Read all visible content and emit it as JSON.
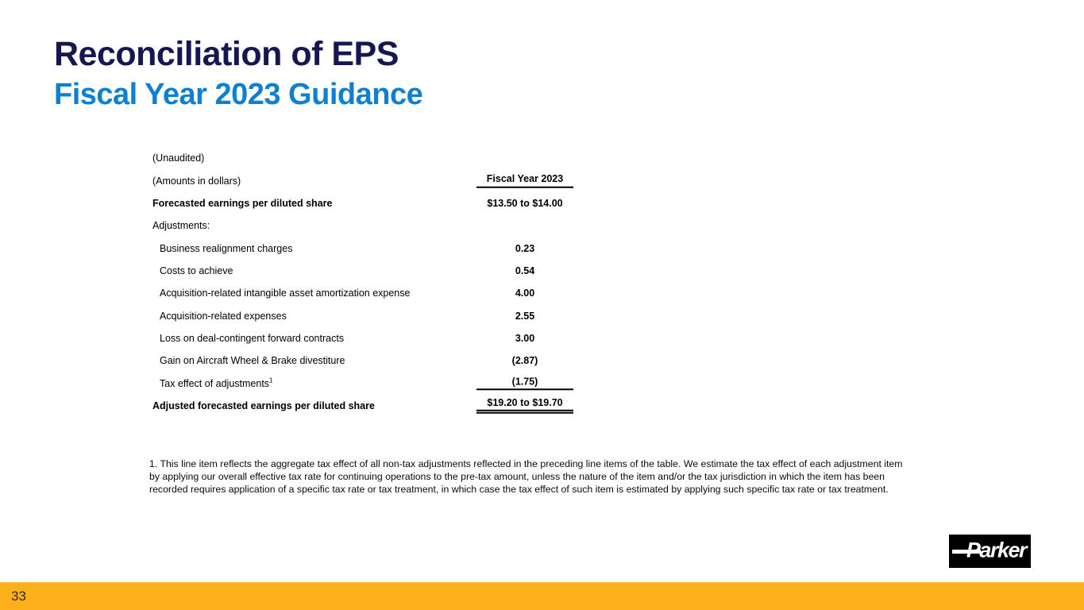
{
  "slide": {
    "title": "Reconciliation of EPS",
    "subtitle": "Fiscal Year 2023 Guidance"
  },
  "colors": {
    "title_navy": "#161650",
    "subtitle_blue": "#0E7FD1",
    "footer_bar_amber": "#FCB11C",
    "logo_background": "#000000",
    "table_rules": "#000000"
  },
  "table": {
    "unaudited": "(Unaudited)",
    "amounts": "(Amounts in dollars)",
    "column_header": "Fiscal Year 2023",
    "rows": [
      {
        "label": "Forecasted earnings per diluted share",
        "value": "$13.50 to $14.00"
      },
      {
        "label": "Adjustments:",
        "value": ""
      },
      {
        "label": "Business realignment charges",
        "value": "0.23"
      },
      {
        "label": "Costs to achieve",
        "value": "0.54"
      },
      {
        "label": "Acquisition-related intangible asset amortization expense",
        "value": "4.00"
      },
      {
        "label": "Acquisition-related expenses",
        "value": "2.55"
      },
      {
        "label": "Loss on deal-contingent forward contracts",
        "value": "3.00"
      },
      {
        "label": "Gain on Aircraft Wheel & Brake divestiture",
        "value": "(2.87)"
      },
      {
        "label": "Tax effect of adjustments",
        "label_superscript": "1",
        "value": "(1.75)"
      },
      {
        "label": "Adjusted forecasted earnings per diluted share",
        "value": "$19.20 to $19.70"
      }
    ]
  },
  "footnote": {
    "text": "1. This line item reflects the aggregate tax effect of all non-tax adjustments reflected in the preceding line items of the table. We estimate the tax effect of each adjustment item by applying our overall effective tax rate for continuing operations to the pre-tax amount, unless the nature of the item and/or the tax jurisdiction in which the item has been recorded requires application of a specific tax rate or tax treatment, in which case the tax effect of such item is estimated by applying such specific tax rate or tax treatment."
  },
  "logo": {
    "text": "Parker"
  },
  "footer": {
    "page_number": "33"
  }
}
